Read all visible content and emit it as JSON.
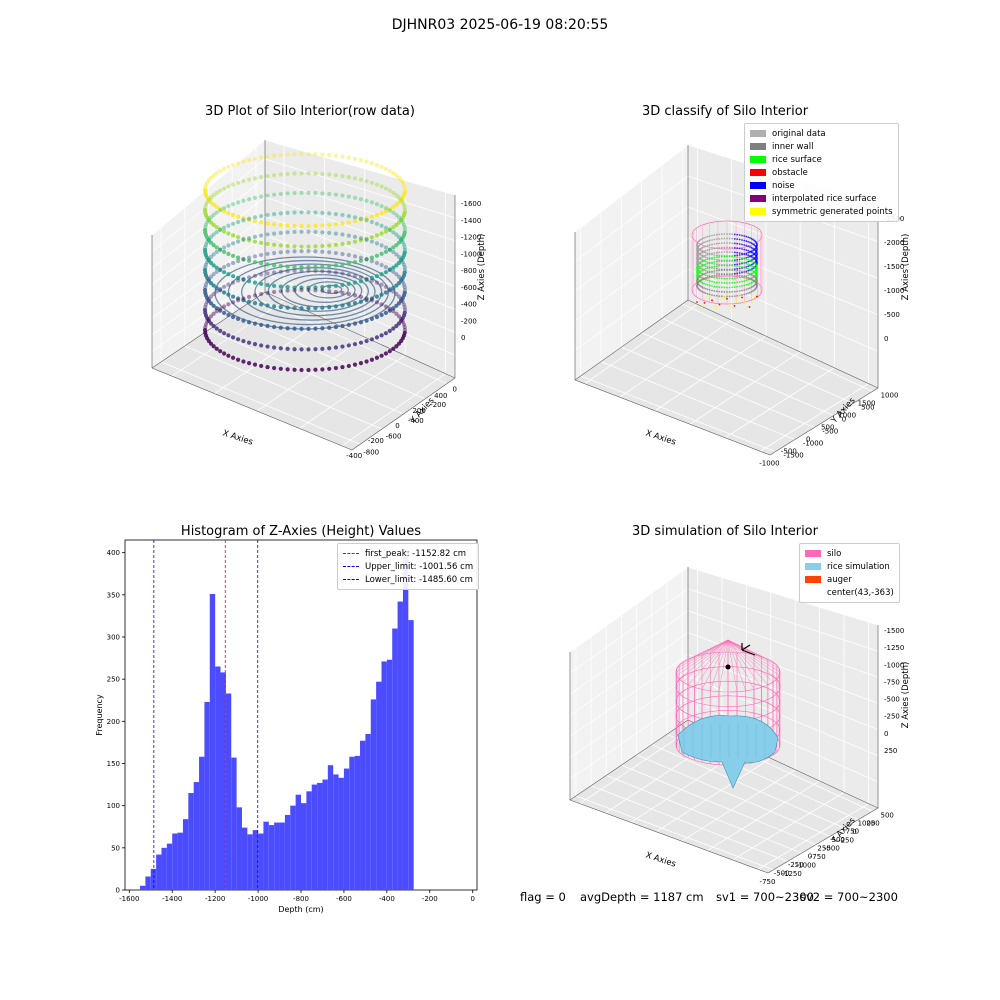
{
  "page": {
    "suptitle": "DJHNR03 2025-06-19 08:20:55"
  },
  "raw_plot": {
    "title": "3D Plot of Silo Interior(row data)",
    "xlabel": "X Axies",
    "ylabel": "Y Axies",
    "zlabel": "Z Axies (Depth)",
    "x_ticks": [
      "-400",
      "-200",
      "0",
      "200",
      "400"
    ],
    "y_ticks": [
      "0",
      "-200",
      "-400",
      "-600",
      "-800"
    ],
    "z_ticks": [
      "0",
      "-200",
      "-400",
      "-600",
      "-800",
      "-1000",
      "-1200",
      "-1400",
      "-1600"
    ]
  },
  "classify_plot": {
    "title": "3D classify of Silo Interior",
    "xlabel": "X Axies",
    "ylabel": "Y Axies",
    "zlabel": "Z Axies (Depth)",
    "x_ticks": [
      "-1000",
      "-500",
      "0",
      "500",
      "1000",
      "1500"
    ],
    "y_ticks": [
      "1000",
      "500",
      "0",
      "-500",
      "-1000",
      "-1500"
    ],
    "z_ticks": [
      "0",
      "-500",
      "-1000",
      "-1500",
      "-2000",
      "-2500"
    ],
    "legend": [
      {
        "label": "original data",
        "color": "#b0b0b0"
      },
      {
        "label": "inner wall",
        "color": "#808080"
      },
      {
        "label": "rice surface",
        "color": "#00ff00"
      },
      {
        "label": "obstacle",
        "color": "#ff0000"
      },
      {
        "label": "noise",
        "color": "#0000ff"
      },
      {
        "label": "interpolated rice surface",
        "color": "#800080"
      },
      {
        "label": "symmetric generated points",
        "color": "#ffff00"
      }
    ]
  },
  "histogram": {
    "title": "Histogram of Z-Axies (Height) Values",
    "xlabel": "Depth (cm)",
    "ylabel": "Frequency",
    "x_ticks": [
      "-1600",
      "-1400",
      "-1200",
      "-1000",
      "-800",
      "-600",
      "-400",
      "-200",
      "0"
    ],
    "y_ticks": [
      "0",
      "50",
      "100",
      "150",
      "200",
      "250",
      "300",
      "350",
      "400"
    ],
    "legend": [
      {
        "label": "first_peak: -1152.82 cm",
        "color": "#ff0000"
      },
      {
        "label": "Upper_limit: -1001.56 cm",
        "color": "#0000ff"
      },
      {
        "label": "Lower_limit: -1485.60 cm",
        "color": "#0000ff"
      }
    ]
  },
  "simulation_plot": {
    "title": "3D simulation of Silo Interior",
    "xlabel": "X Axies",
    "ylabel": "Y Axies",
    "zlabel": "Z Axies (Depth)",
    "x_ticks": [
      "-750",
      "-500",
      "-250",
      "0",
      "250",
      "500",
      "750",
      "1000"
    ],
    "y_ticks": [
      "500",
      "250",
      "0",
      "-250",
      "-500",
      "-750",
      "-1000",
      "-1250"
    ],
    "z_ticks": [
      "250",
      "0",
      "-250",
      "-500",
      "-750",
      "-1000",
      "-1250",
      "-1500"
    ],
    "legend": [
      {
        "label": "silo",
        "color": "#ff69b4"
      },
      {
        "label": "rice simulation",
        "color": "#87ceeb"
      },
      {
        "label": "auger",
        "color": "#ff4500"
      },
      {
        "label": "center(43,-363)",
        "color": ""
      }
    ]
  },
  "status": {
    "flag": "flag = 0",
    "avg": "avgDepth = 1187 cm",
    "sv1": "sv1 = 700~2300",
    "sv2": "sv2 = 700~2300"
  },
  "chart_data": [
    {
      "type": "scatter",
      "title": "3D Plot of Silo Interior(row data)",
      "xlabel": "X Axies",
      "ylabel": "Y Axies",
      "zlabel": "Z Axies (Depth)",
      "xlim": [
        -450,
        450
      ],
      "ylim": [
        -850,
        50
      ],
      "zlim": [
        -1650,
        50
      ]
    },
    {
      "type": "scatter",
      "title": "3D classify of Silo Interior",
      "xlim": [
        -1300,
        1500
      ],
      "ylim": [
        -1600,
        1100
      ],
      "zlim": [
        -2500,
        0
      ],
      "series": [
        {
          "name": "original data"
        },
        {
          "name": "inner wall"
        },
        {
          "name": "rice surface"
        },
        {
          "name": "obstacle"
        },
        {
          "name": "noise"
        },
        {
          "name": "interpolated rice surface"
        },
        {
          "name": "symmetric generated points"
        }
      ]
    },
    {
      "type": "bar",
      "title": "Histogram of Z-Axies (Height) Values",
      "xlabel": "Depth (cm)",
      "ylabel": "Frequency",
      "xlim": [
        -1620,
        20
      ],
      "ylim": [
        0,
        415
      ],
      "bin_start": -1550,
      "bin_width": 25,
      "values": [
        5,
        16,
        25,
        42,
        50,
        55,
        67,
        68,
        84,
        115,
        128,
        158,
        223,
        351,
        265,
        258,
        233,
        157,
        98,
        74,
        66,
        71,
        67,
        81,
        77,
        80,
        80,
        89,
        100,
        113,
        103,
        117,
        125,
        127,
        131,
        148,
        137,
        133,
        144,
        158,
        159,
        177,
        185,
        226,
        247,
        271,
        273,
        310,
        342,
        396,
        320
      ],
      "vlines": [
        {
          "name": "first_peak",
          "x": -1152.82,
          "color": "#ff0000"
        },
        {
          "name": "Upper_limit",
          "x": -1001.56,
          "color": "#0000ff"
        },
        {
          "name": "Lower_limit",
          "x": -1485.6,
          "color": "#0000ff"
        }
      ]
    },
    {
      "type": "area",
      "title": "3D simulation of Silo Interior",
      "xlim": [
        -850,
        1050
      ],
      "ylim": [
        -1300,
        600
      ],
      "zlim": [
        -1600,
        350
      ],
      "center": [
        43,
        -363
      ]
    }
  ]
}
